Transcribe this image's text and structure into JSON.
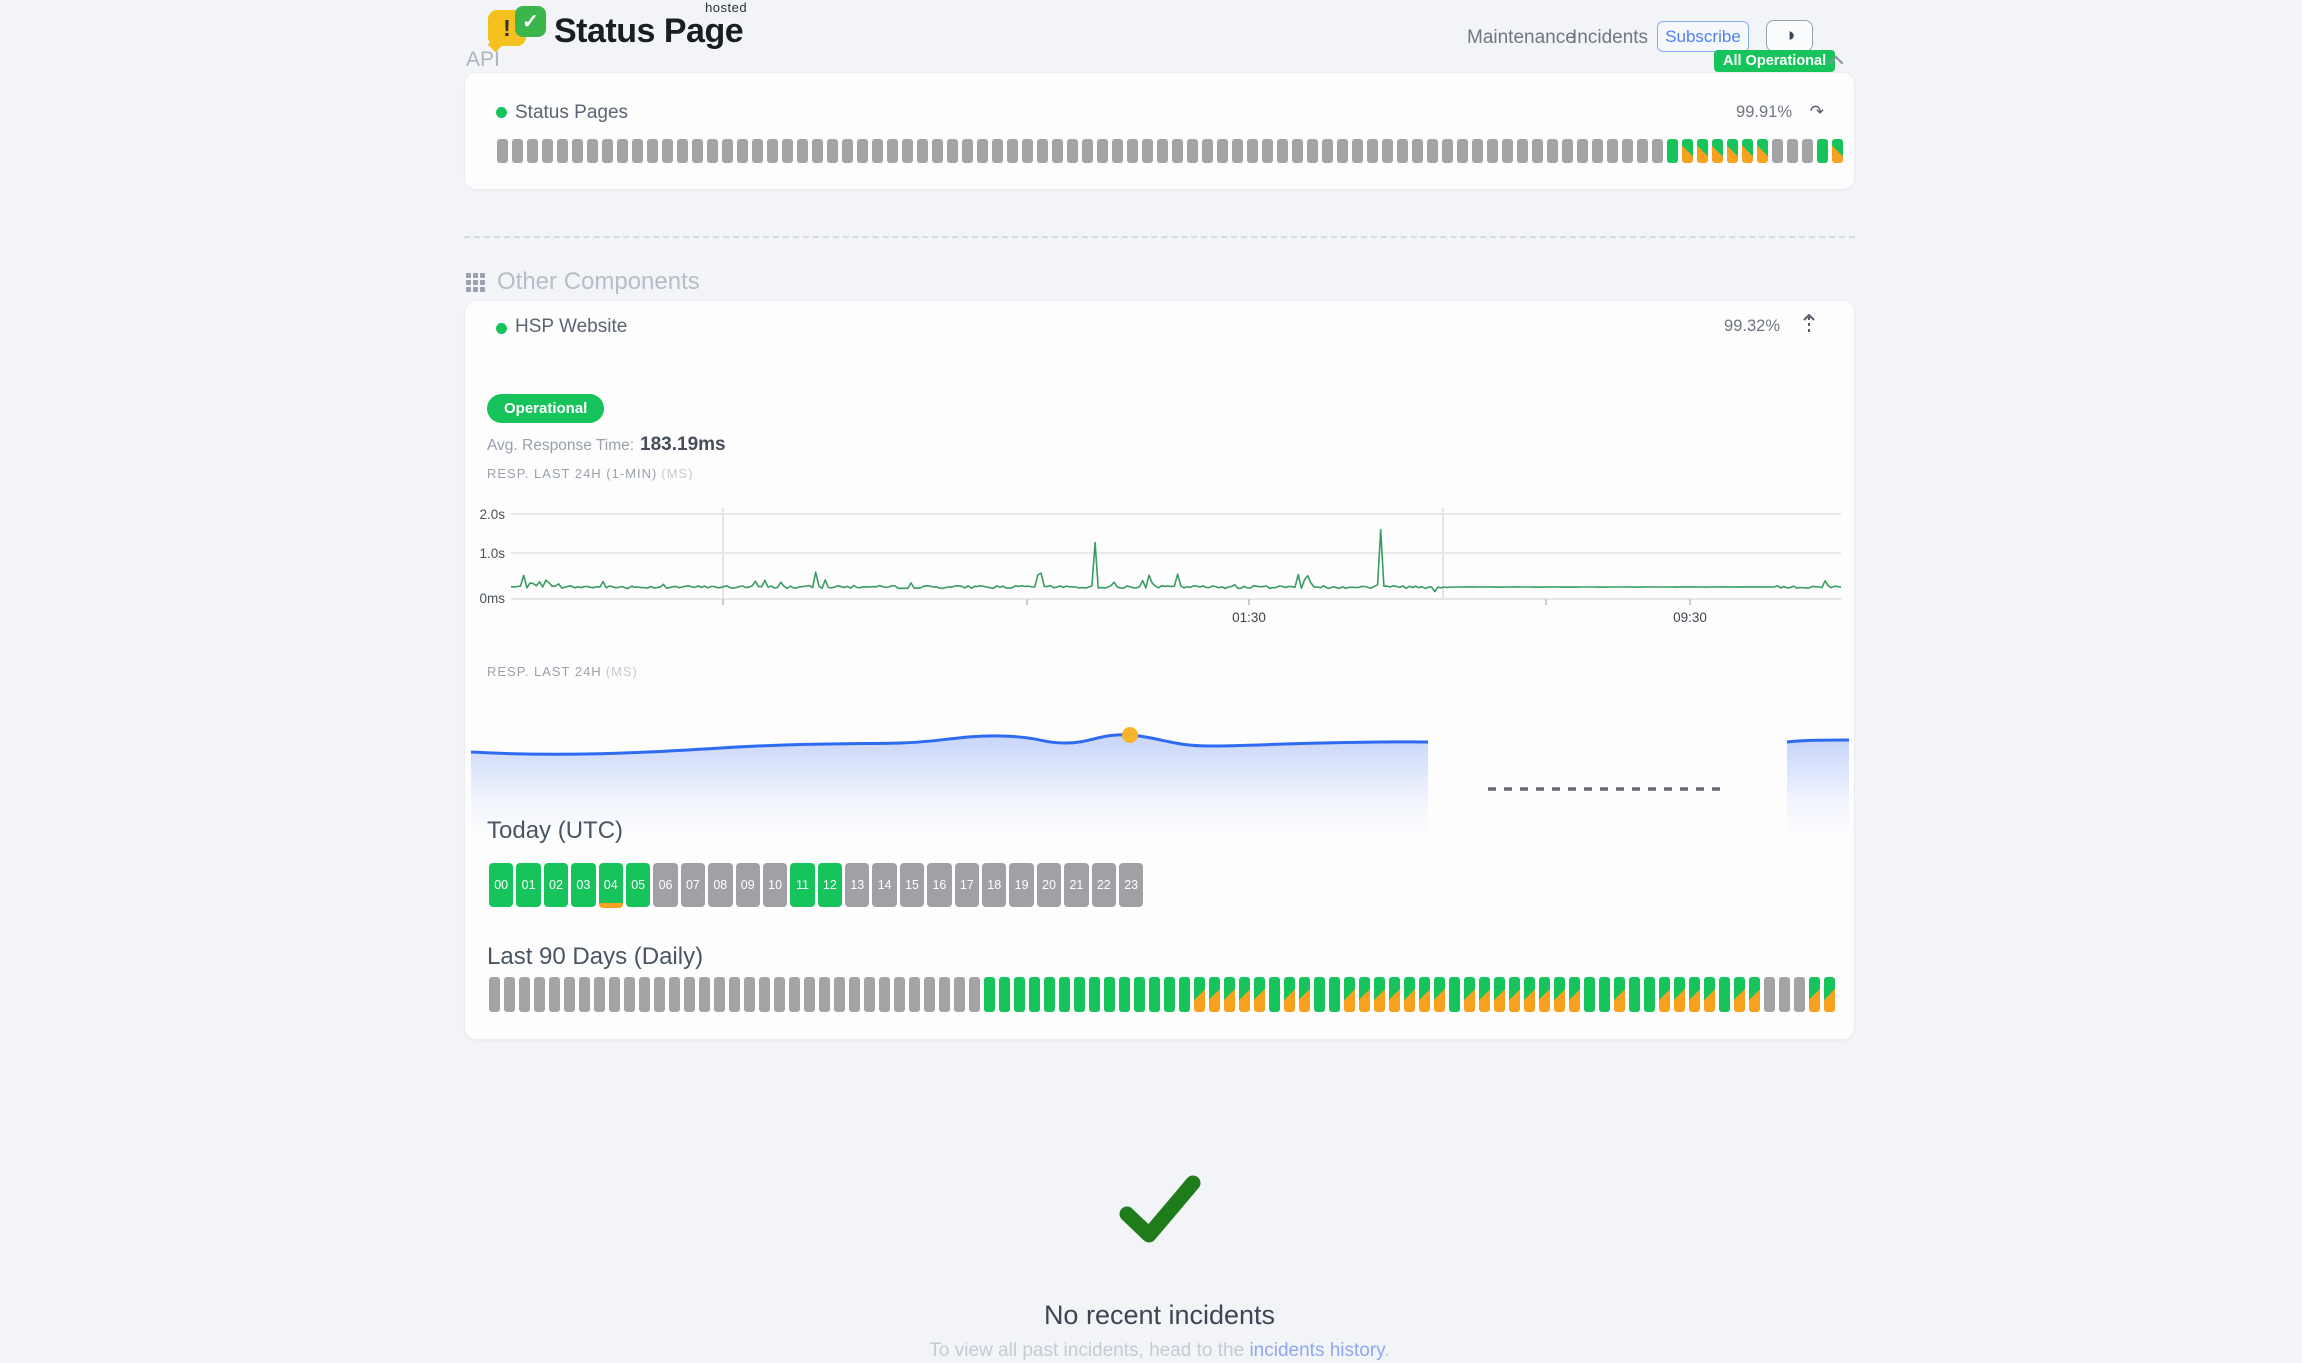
{
  "brand": {
    "name": "Status Page",
    "superscript": "hosted",
    "alert_glyph": "!",
    "check_glyph": "✓"
  },
  "nav": {
    "maintenance": "Maintenance",
    "incidents": "Incidents",
    "subscribe": "Subscribe",
    "theme_icon": "◑",
    "overall_status": "All Operational"
  },
  "api": {
    "title": "API",
    "component": {
      "name": "Status Pages",
      "uptime": "99.91%",
      "refresh_icon": "↷",
      "pattern": "eeeeeeeeeeeeeeeeeeeeeeeeeeeeeeeeeeeeeeeeeeeeeeeeeeeeeeeeeeeeeeeeeeeeeeeeeeeeeegppppppeeegp"
    }
  },
  "other": {
    "title": "Other Components",
    "component": {
      "name": "HSP Website",
      "uptime": "99.32%",
      "status": "Operational",
      "avg_label": "Avg. Response Time:",
      "avg_value": "183.19ms"
    },
    "chart_minute": {
      "label": "RESP. LAST 24H (1-MIN)",
      "unit": "(MS)",
      "y_ticks": [
        "2.0s",
        "1.0s",
        "0ms"
      ],
      "x_ticks": [
        "01:30",
        "09:30"
      ]
    },
    "chart_daily": {
      "label": "RESP. LAST 24H",
      "unit": "(MS)"
    },
    "today": {
      "title": "Today (UTC)",
      "hours": [
        {
          "label": "00",
          "state": "up"
        },
        {
          "label": "01",
          "state": "up"
        },
        {
          "label": "02",
          "state": "up"
        },
        {
          "label": "03",
          "state": "up"
        },
        {
          "label": "04",
          "state": "up",
          "degraded_strip": true
        },
        {
          "label": "05",
          "state": "up"
        },
        {
          "label": "06",
          "state": "empty"
        },
        {
          "label": "07",
          "state": "empty"
        },
        {
          "label": "08",
          "state": "empty"
        },
        {
          "label": "09",
          "state": "empty"
        },
        {
          "label": "10",
          "state": "empty"
        },
        {
          "label": "11",
          "state": "up"
        },
        {
          "label": "12",
          "state": "up"
        },
        {
          "label": "13",
          "state": "empty"
        },
        {
          "label": "14",
          "state": "empty"
        },
        {
          "label": "15",
          "state": "empty"
        },
        {
          "label": "16",
          "state": "empty"
        },
        {
          "label": "17",
          "state": "empty"
        },
        {
          "label": "18",
          "state": "empty"
        },
        {
          "label": "19",
          "state": "empty"
        },
        {
          "label": "20",
          "state": "empty"
        },
        {
          "label": "21",
          "state": "empty"
        },
        {
          "label": "22",
          "state": "empty"
        },
        {
          "label": "23",
          "state": "empty"
        }
      ]
    },
    "last90": {
      "title": "Last 90 Days (Daily)",
      "pattern": "eeeeeeeeeeeeeeeeeeeeeeeeeeeeeeeeeggggggggggggggpppppgppggpppppppgppppppppggpggppppgppeeepp"
    }
  },
  "footer": {
    "title": "No recent incidents",
    "subtitle_prefix": "To view all past incidents, head to the ",
    "link": "incidents history",
    "suffix": "."
  },
  "colors": {
    "green": "#17c45b",
    "orange": "#f6a21e",
    "graybar": "#a2a4a6",
    "line_green": "#389c60",
    "blue": "#2f6bf0",
    "yellow_dot": "#f6b32b",
    "check_green": "#1e7c1a"
  }
}
